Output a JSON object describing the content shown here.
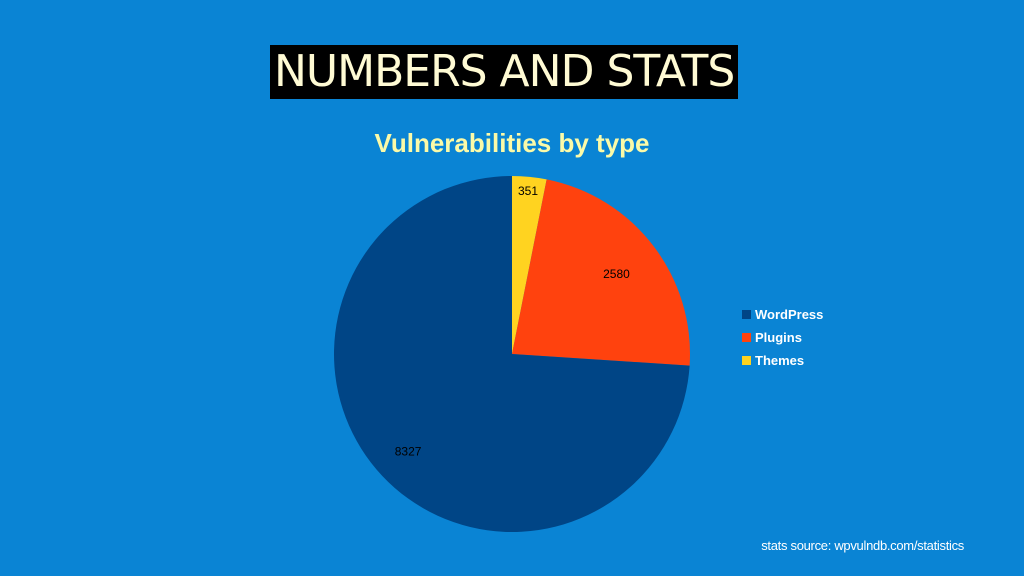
{
  "slide": {
    "title": "NUMBERS AND STATS",
    "source_text": "stats source: wpvulndb.com/statistics"
  },
  "colors": {
    "background": "#0a84d4",
    "title_text": "#fffbd4",
    "chart_title_text": "#fbfaa8"
  },
  "chart_data": {
    "type": "pie",
    "title": "Vulnerabilities by type",
    "categories": [
      "WordPress",
      "Plugins",
      "Themes"
    ],
    "values": [
      8327,
      2580,
      351
    ],
    "colors": [
      "#004586",
      "#ff420e",
      "#ffd320"
    ],
    "data_labels": [
      "8327",
      "2580",
      "351"
    ],
    "legend_position": "right",
    "start": "top",
    "direction": "clockwise",
    "slice_order": [
      "Themes",
      "Plugins",
      "WordPress"
    ]
  }
}
